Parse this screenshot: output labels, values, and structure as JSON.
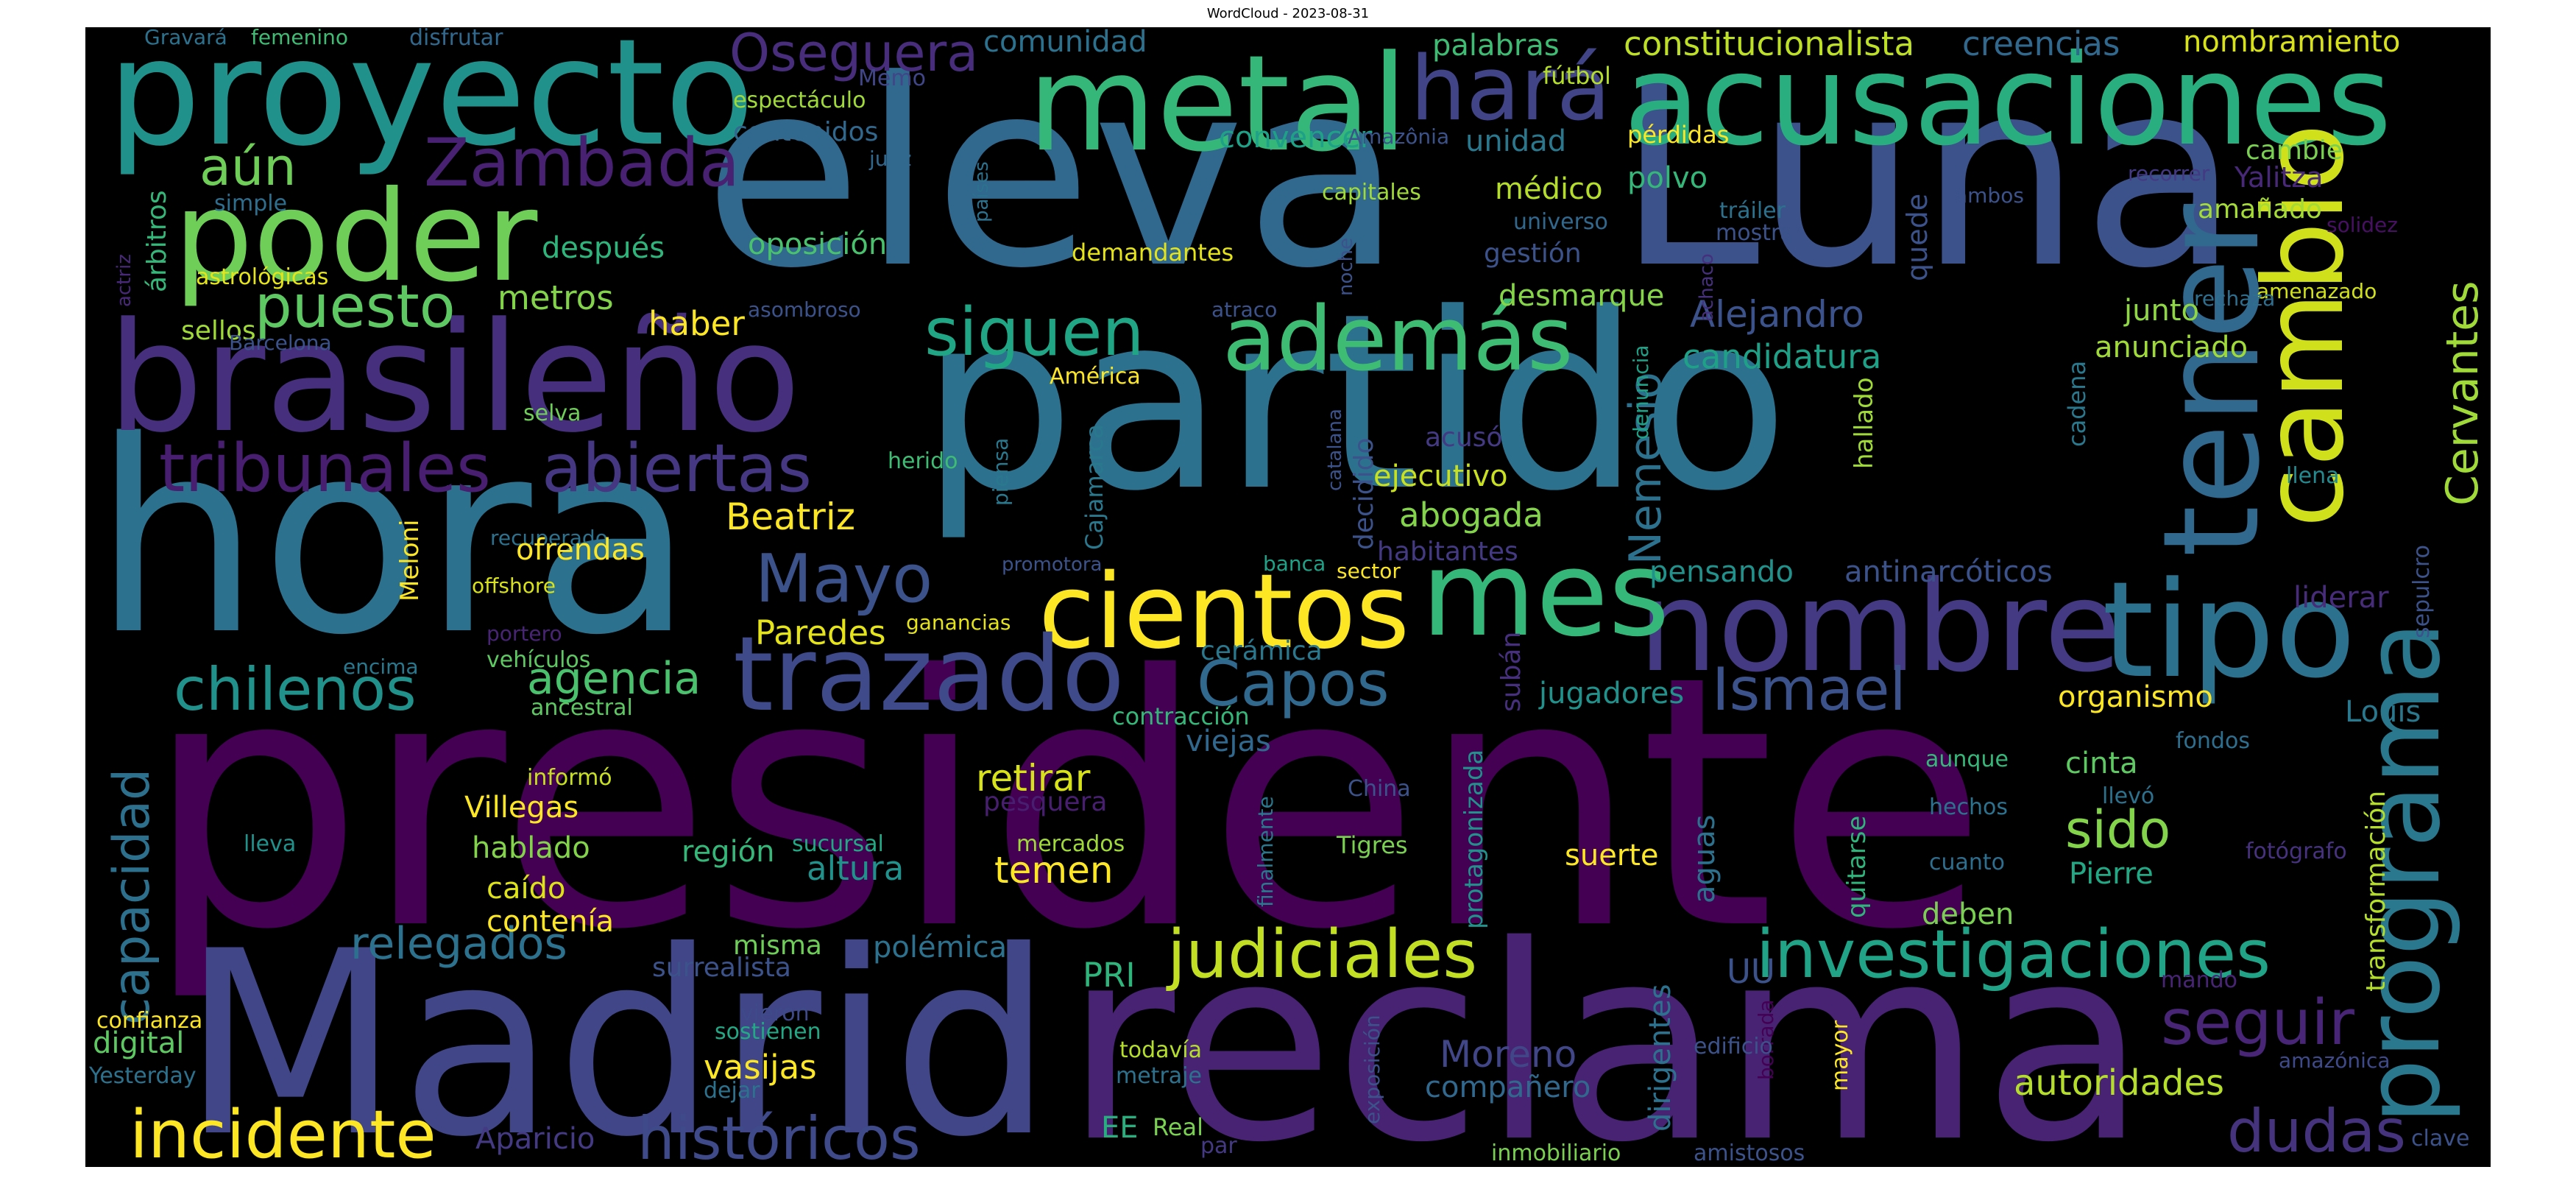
{
  "title": "WordCloud - 2023-08-31",
  "words": [
    {
      "text": "presidente",
      "color": "#440154"
    },
    {
      "text": "partido",
      "color": "#2c728e"
    },
    {
      "text": "eleva",
      "color": "#31688e"
    },
    {
      "text": "Luna",
      "color": "#3b528b"
    },
    {
      "text": "hora",
      "color": "#2c728e"
    },
    {
      "text": "Madrid",
      "color": "#404688"
    },
    {
      "text": "reclama",
      "color": "#482374"
    },
    {
      "text": "brasileño",
      "color": "#46307e"
    },
    {
      "text": "proyecto",
      "color": "#21918c"
    },
    {
      "text": "metal",
      "color": "#35b779"
    },
    {
      "text": "acusaciones",
      "color": "#29af7f"
    },
    {
      "text": "poder",
      "color": "#6ece58"
    },
    {
      "text": "nombre",
      "color": "#443a83"
    },
    {
      "text": "tipo",
      "color": "#2c728e"
    },
    {
      "text": "tener",
      "color": "#31688e"
    },
    {
      "text": "cambio",
      "color": "#d0e11c"
    },
    {
      "text": "programa",
      "color": "#2a788e"
    },
    {
      "text": "cientos",
      "color": "#fde725"
    },
    {
      "text": "mes",
      "color": "#35b779"
    },
    {
      "text": "trazado",
      "color": "#3e4a89"
    },
    {
      "text": "además",
      "color": "#3fbc73"
    },
    {
      "text": "hará",
      "color": "#414487"
    },
    {
      "text": "Zambada",
      "color": "#482173"
    },
    {
      "text": "puesto",
      "color": "#5ec962"
    },
    {
      "text": "siguen",
      "color": "#21a685"
    },
    {
      "text": "tribunales",
      "color": "#481f70"
    },
    {
      "text": "abiertas",
      "color": "#453781"
    },
    {
      "text": "Mayo",
      "color": "#3b528b"
    },
    {
      "text": "Capos",
      "color": "#31688e"
    },
    {
      "text": "judiciales",
      "color": "#c2df23"
    },
    {
      "text": "investigaciones",
      "color": "#20a386"
    },
    {
      "text": "incidente",
      "color": "#fde725"
    },
    {
      "text": "históricos",
      "color": "#3e4a89"
    },
    {
      "text": "relegados",
      "color": "#2c728e"
    },
    {
      "text": "chilenos",
      "color": "#21918c"
    },
    {
      "text": "agencia",
      "color": "#4ac16d"
    },
    {
      "text": "capacidad",
      "color": "#2d708e"
    },
    {
      "text": "seguir",
      "color": "#482576"
    },
    {
      "text": "dudas",
      "color": "#46337e"
    },
    {
      "text": "Ismael",
      "color": "#3b528b"
    },
    {
      "text": "Nemesio",
      "color": "#2c728e"
    },
    {
      "text": "Oseguera",
      "color": "#472d7b"
    },
    {
      "text": "aún",
      "color": "#6ece58"
    },
    {
      "text": "Cervantes",
      "color": "#a0da39"
    },
    {
      "text": "sido",
      "color": "#84d44b"
    },
    {
      "text": "Beatriz",
      "color": "#fde725"
    },
    {
      "text": "autoridades",
      "color": "#b5de2b"
    },
    {
      "text": "Moreno",
      "color": "#404688"
    },
    {
      "text": "Alejandro",
      "color": "#3b528b"
    },
    {
      "text": "retirar",
      "color": "#d8e219"
    },
    {
      "text": "Paredes",
      "color": "#e5e419"
    },
    {
      "text": "constitucionalista",
      "color": "#bddf26"
    },
    {
      "text": "creencias",
      "color": "#31688e"
    },
    {
      "text": "nombramiento",
      "color": "#d8e219"
    },
    {
      "text": "palabras",
      "color": "#3fbc73"
    },
    {
      "text": "comunidad",
      "color": "#2c728e"
    },
    {
      "text": "fútbol",
      "color": "#b5de2b"
    },
    {
      "text": "convencer",
      "color": "#1fa187"
    },
    {
      "text": "unidad",
      "color": "#2a788e"
    },
    {
      "text": "Amazônia",
      "color": "#3b528b"
    },
    {
      "text": "pérdidas",
      "color": "#fde725"
    },
    {
      "text": "polvo",
      "color": "#35b779"
    },
    {
      "text": "médico",
      "color": "#b5de2b"
    },
    {
      "text": "gestión",
      "color": "#3b528b"
    },
    {
      "text": "desmarque",
      "color": "#86d549"
    },
    {
      "text": "candidatura",
      "color": "#1fa187"
    },
    {
      "text": "junto",
      "color": "#8fd744"
    },
    {
      "text": "anunciado",
      "color": "#a0da39"
    },
    {
      "text": "cadena",
      "color": "#2a788e"
    },
    {
      "text": "quede",
      "color": "#3b528b"
    },
    {
      "text": "ambos",
      "color": "#3b528b"
    },
    {
      "text": "recorrer",
      "color": "#443983"
    },
    {
      "text": "amañado",
      "color": "#a5db36"
    },
    {
      "text": "Yalitza",
      "color": "#482878"
    },
    {
      "text": "cambie",
      "color": "#7ad151"
    },
    {
      "text": "solidez",
      "color": "#471063"
    },
    {
      "text": "amenazado",
      "color": "#d0e11c"
    },
    {
      "text": "rechaza",
      "color": "#2e6e8e"
    },
    {
      "text": "llena",
      "color": "#23898e"
    },
    {
      "text": "liderar",
      "color": "#472c7a"
    },
    {
      "text": "sepulcro",
      "color": "#3b528b"
    },
    {
      "text": "Louis",
      "color": "#2a788e"
    },
    {
      "text": "organismo",
      "color": "#fde725"
    },
    {
      "text": "fondos",
      "color": "#2e6e8e"
    },
    {
      "text": "cinta",
      "color": "#5ec962"
    },
    {
      "text": "transformación",
      "color": "#b5de2b"
    },
    {
      "text": "fotógrafo",
      "color": "#46327e"
    },
    {
      "text": "Pierre",
      "color": "#22a884"
    },
    {
      "text": "mando",
      "color": "#482475"
    },
    {
      "text": "amazónica",
      "color": "#3e4a89"
    },
    {
      "text": "clave",
      "color": "#3b528b"
    },
    {
      "text": "Gravará",
      "color": "#2c728e"
    },
    {
      "text": "femenino",
      "color": "#3fbc73"
    },
    {
      "text": "disfrutar",
      "color": "#31688e"
    },
    {
      "text": "Memo",
      "color": "#404688"
    },
    {
      "text": "espectáculo",
      "color": "#a0da39"
    },
    {
      "text": "contenidos",
      "color": "#31688e"
    },
    {
      "text": "juez",
      "color": "#31688e"
    },
    {
      "text": "países",
      "color": "#2c728e"
    },
    {
      "text": "capitales",
      "color": "#a0da39"
    },
    {
      "text": "oposición",
      "color": "#4ac16d"
    },
    {
      "text": "demandantes",
      "color": "#e5e419"
    },
    {
      "text": "después",
      "color": "#2fb47c"
    },
    {
      "text": "metros",
      "color": "#84d44b"
    },
    {
      "text": "haber",
      "color": "#fde725"
    },
    {
      "text": "asombroso",
      "color": "#3b528b"
    },
    {
      "text": "atraco",
      "color": "#3b528b"
    },
    {
      "text": "noche",
      "color": "#3b528b"
    },
    {
      "text": "universo",
      "color": "#31688e"
    },
    {
      "text": "mostrar",
      "color": "#3b528b"
    },
    {
      "text": "tráiler",
      "color": "#2c728e"
    },
    {
      "text": "achaco",
      "color": "#46307e"
    },
    {
      "text": "denuncia",
      "color": "#1fa187"
    },
    {
      "text": "árbitros",
      "color": "#35b779"
    },
    {
      "text": "simple",
      "color": "#2e6e8e"
    },
    {
      "text": "actriz",
      "color": "#482878"
    },
    {
      "text": "astrológicas",
      "color": "#e5e419"
    },
    {
      "text": "sellos",
      "color": "#a0da39"
    },
    {
      "text": "Barcelona",
      "color": "#3b528b"
    },
    {
      "text": "América",
      "color": "#fde725"
    },
    {
      "text": "selva",
      "color": "#6ece58"
    },
    {
      "text": "herido",
      "color": "#3fbc73"
    },
    {
      "text": "Cajamarca",
      "color": "#2a788e"
    },
    {
      "text": "piensa",
      "color": "#2a788e"
    },
    {
      "text": "catalana",
      "color": "#3b528b"
    },
    {
      "text": "decidido",
      "color": "#3b528b"
    },
    {
      "text": "acusó",
      "color": "#443983"
    },
    {
      "text": "ejecutivo",
      "color": "#c8e020"
    },
    {
      "text": "abogada",
      "color": "#84d44b"
    },
    {
      "text": "habitantes",
      "color": "#443983"
    },
    {
      "text": "pensando",
      "color": "#21918c"
    },
    {
      "text": "antinarcóticos",
      "color": "#3b528b"
    },
    {
      "text": "hallado",
      "color": "#a0da39"
    },
    {
      "text": "Meloni",
      "color": "#fde725"
    },
    {
      "text": "recuperado",
      "color": "#2c728e"
    },
    {
      "text": "ofrendas",
      "color": "#fde725"
    },
    {
      "text": "offshore",
      "color": "#d8e219"
    },
    {
      "text": "promotora",
      "color": "#3b528b"
    },
    {
      "text": "banca",
      "color": "#1fa187"
    },
    {
      "text": "sector",
      "color": "#fde725"
    },
    {
      "text": "portero",
      "color": "#482475"
    },
    {
      "text": "encima",
      "color": "#2a788e"
    },
    {
      "text": "vehículos",
      "color": "#5ec962"
    },
    {
      "text": "ancestral",
      "color": "#5ec962"
    },
    {
      "text": "ganancias",
      "color": "#e5e419"
    },
    {
      "text": "cerámica",
      "color": "#2a788e"
    },
    {
      "text": "contracción",
      "color": "#35b779"
    },
    {
      "text": "viejas",
      "color": "#31688e"
    },
    {
      "text": "subán",
      "color": "#46307e"
    },
    {
      "text": "jugadores",
      "color": "#21918c"
    },
    {
      "text": "protagonizada",
      "color": "#21918c"
    },
    {
      "text": "aguas",
      "color": "#2c728e"
    },
    {
      "text": "aunque",
      "color": "#35b779"
    },
    {
      "text": "llevó",
      "color": "#2c728e"
    },
    {
      "text": "hechos",
      "color": "#2c728e"
    },
    {
      "text": "quitarse",
      "color": "#2fb47c"
    },
    {
      "text": "cuanto",
      "color": "#2e6e8e"
    },
    {
      "text": "deben",
      "color": "#7ad151"
    },
    {
      "text": "informó",
      "color": "#c8e020"
    },
    {
      "text": "Villegas",
      "color": "#fde725"
    },
    {
      "text": "hablado",
      "color": "#84d44b"
    },
    {
      "text": "caído",
      "color": "#dde318"
    },
    {
      "text": "contenía",
      "color": "#fde725"
    },
    {
      "text": "lleva",
      "color": "#21918c"
    },
    {
      "text": "región",
      "color": "#35b779"
    },
    {
      "text": "pesquera",
      "color": "#481f70"
    },
    {
      "text": "altura",
      "color": "#21918c"
    },
    {
      "text": "temen",
      "color": "#fde725"
    },
    {
      "text": "sucursal",
      "color": "#22a884"
    },
    {
      "text": "mercados",
      "color": "#a0da39"
    },
    {
      "text": "China",
      "color": "#3b528b"
    },
    {
      "text": "Tigres",
      "color": "#7ad151"
    },
    {
      "text": "finalmente",
      "color": "#2a788e"
    },
    {
      "text": "suerte",
      "color": "#fde725"
    },
    {
      "text": "misma",
      "color": "#6ece58"
    },
    {
      "text": "polémica",
      "color": "#2c728e"
    },
    {
      "text": "surrealista",
      "color": "#3b528b"
    },
    {
      "text": "PRI",
      "color": "#2fb47c"
    },
    {
      "text": "UU",
      "color": "#3b528b"
    },
    {
      "text": "dirigentes",
      "color": "#2c728e"
    },
    {
      "text": "borrada",
      "color": "#440154"
    },
    {
      "text": "exposición",
      "color": "#3b528b"
    },
    {
      "text": "mayor",
      "color": "#fde725"
    },
    {
      "text": "edificio",
      "color": "#3b528b"
    },
    {
      "text": "digital",
      "color": "#5ec962"
    },
    {
      "text": "confianza",
      "color": "#fde725"
    },
    {
      "text": "Yesterday",
      "color": "#2c728e"
    },
    {
      "text": "vieron",
      "color": "#3e4a89"
    },
    {
      "text": "sostienen",
      "color": "#22a884"
    },
    {
      "text": "vasijas",
      "color": "#fde725"
    },
    {
      "text": "dejar",
      "color": "#2c728e"
    },
    {
      "text": "todavía",
      "color": "#b5de2b"
    },
    {
      "text": "metraje",
      "color": "#2c728e"
    },
    {
      "text": "compañero",
      "color": "#31688e"
    },
    {
      "text": "EE",
      "color": "#29af7f"
    },
    {
      "text": "Real",
      "color": "#7ad151"
    },
    {
      "text": "par",
      "color": "#443983"
    },
    {
      "text": "Aparicio",
      "color": "#443983"
    },
    {
      "text": "inmobiliario",
      "color": "#7ad151"
    },
    {
      "text": "amistosos",
      "color": "#3b528b"
    }
  ]
}
